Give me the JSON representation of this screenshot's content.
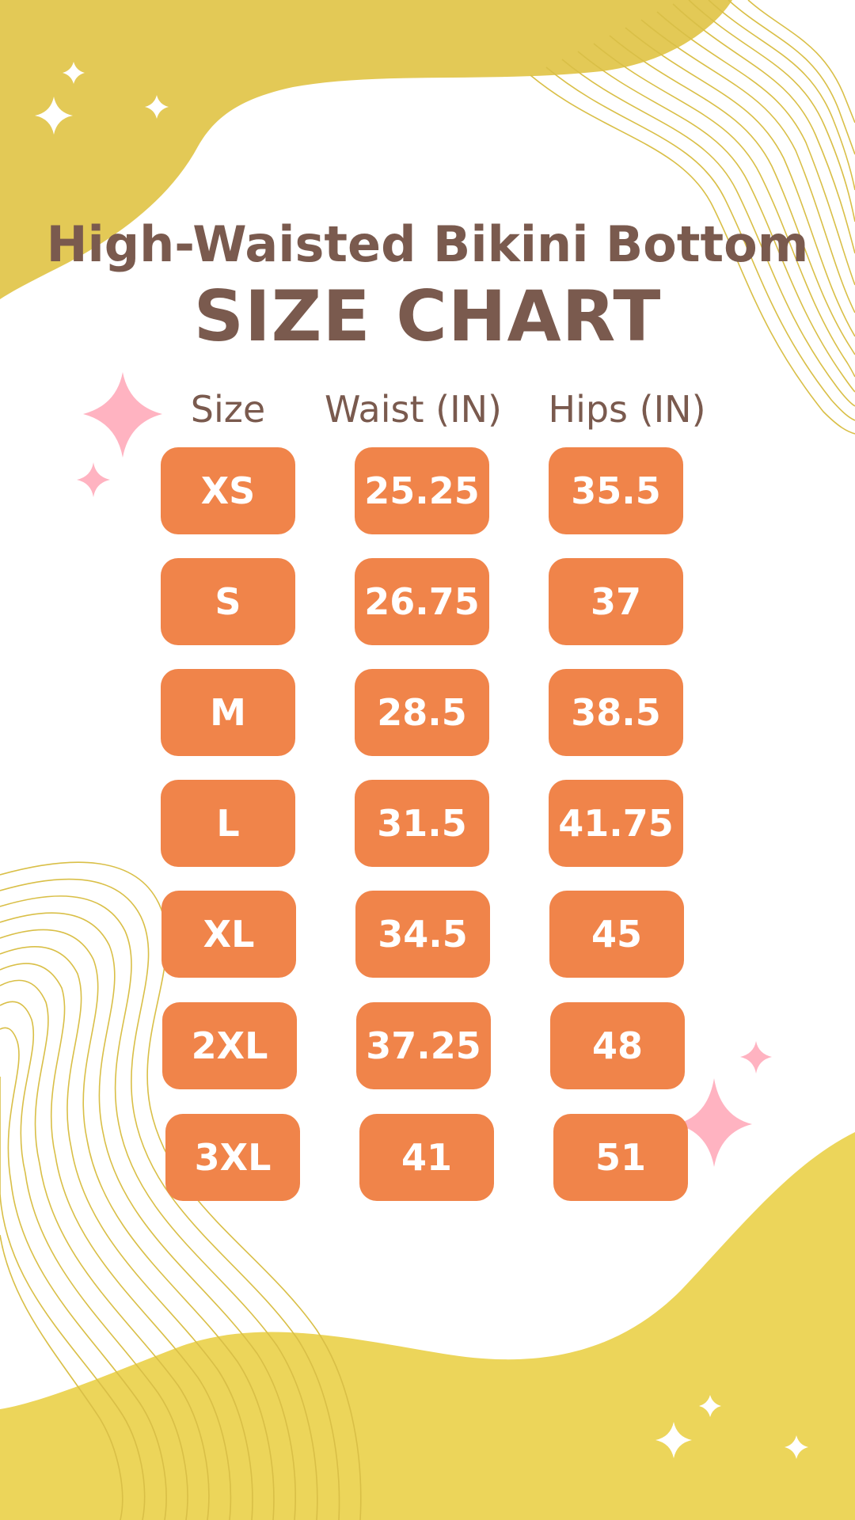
{
  "title": {
    "line1": "High-Waisted Bikini Bottom",
    "line2": "SIZE CHART"
  },
  "headers": {
    "size": "Size",
    "waist": "Waist (IN)",
    "hips": "Hips (IN)"
  },
  "rows": [
    {
      "size": "XS",
      "waist": "25.25",
      "hips": "35.5"
    },
    {
      "size": "S",
      "waist": "26.75",
      "hips": "37"
    },
    {
      "size": "M",
      "waist": "28.5",
      "hips": "38.5"
    },
    {
      "size": "L",
      "waist": "31.5",
      "hips": "41.75"
    },
    {
      "size": "XL",
      "waist": "34.5",
      "hips": "45"
    },
    {
      "size": "2XL",
      "waist": "37.25",
      "hips": "48"
    },
    {
      "size": "3XL",
      "waist": "41",
      "hips": "51"
    }
  ],
  "colors": {
    "yellow": "#e3c956",
    "yellow_light": "#ecd55a",
    "brown_text": "#7a5a4e",
    "orange_pill": "#f0844a",
    "pink_sparkle": "#ffb3c1",
    "line_yellow": "#d9bf47"
  },
  "icons": [
    "sparkle-icon"
  ]
}
